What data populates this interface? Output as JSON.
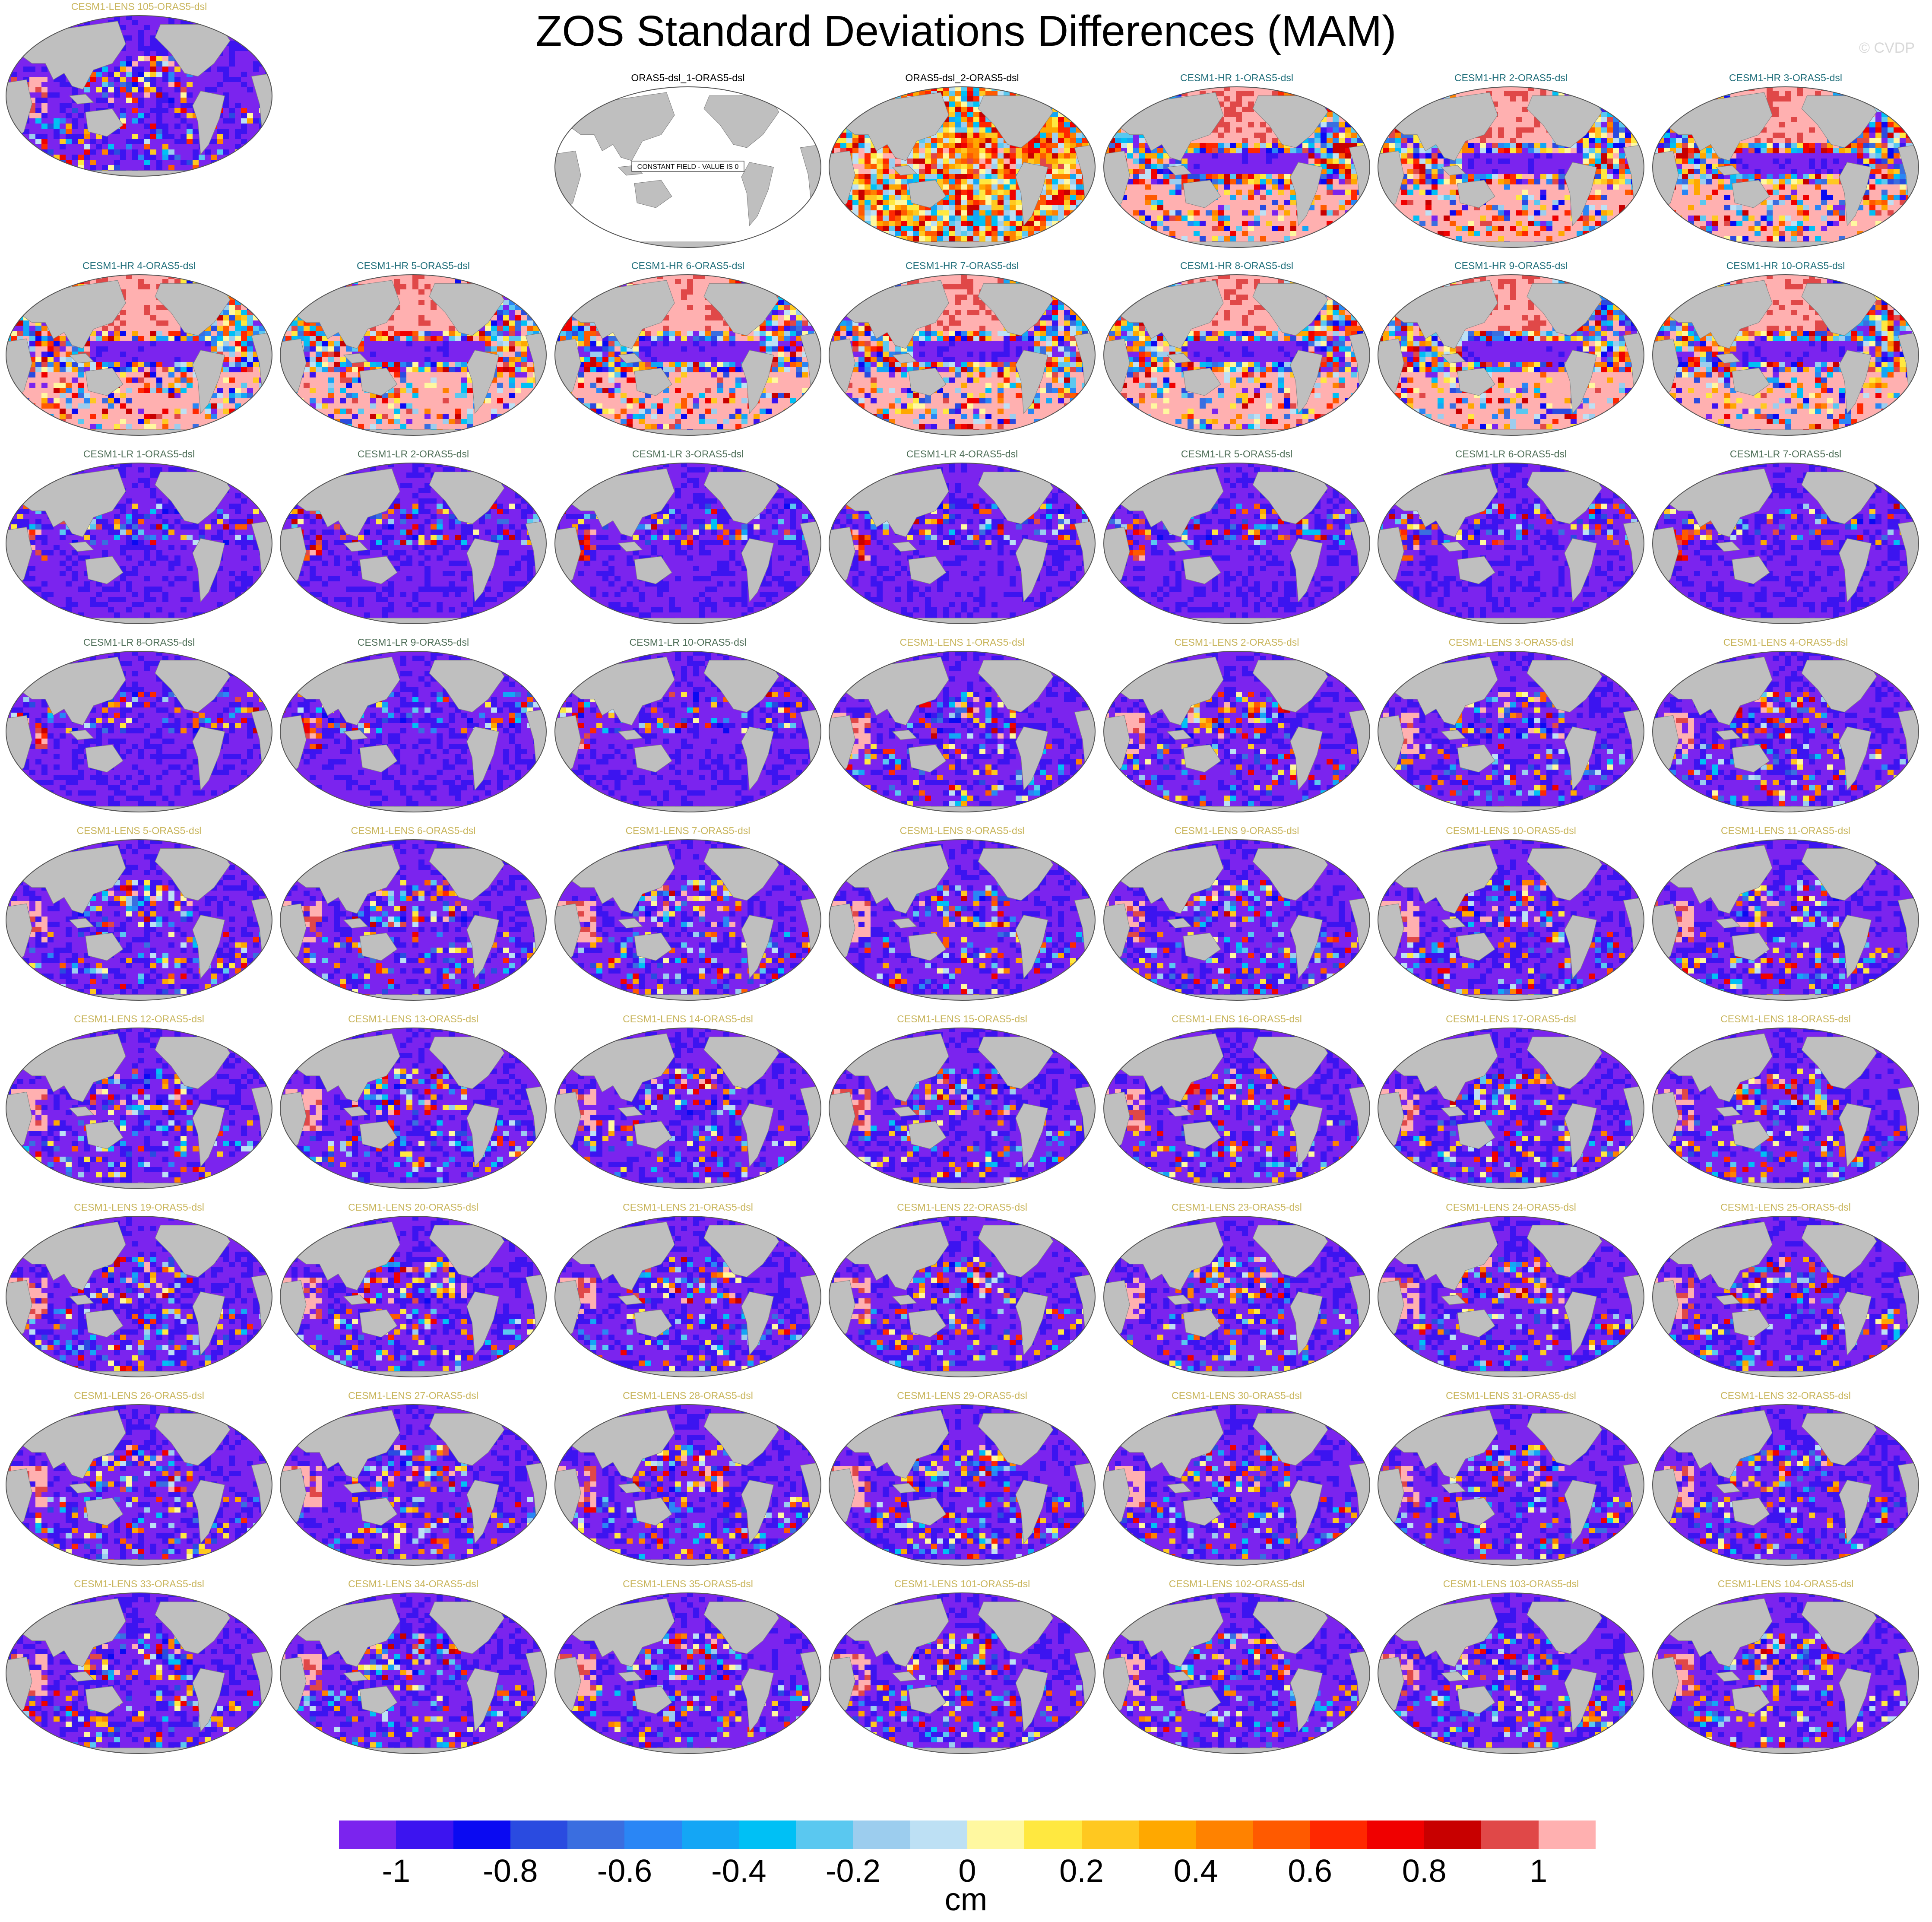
{
  "title": "ZOS Standard Deviations Differences (MAM)",
  "watermark": "© CVDP",
  "constant_field_note": "CONSTANT FIELD - VALUE IS 0",
  "colors": {
    "land": "#bfbfbf",
    "title_obs": "#000000",
    "title_hr": "#1f6e7a",
    "title_lr": "#4e6e57",
    "title_lens": "#c8b45a",
    "land_outline": "#808080"
  },
  "colorbar": {
    "unit": "cm",
    "colors": [
      "#7b24ee",
      "#3c14f0",
      "#0a0af2",
      "#2a4be0",
      "#3a6ee0",
      "#2a86f5",
      "#14a6f5",
      "#00c0f5",
      "#5ac8f0",
      "#9ccdee",
      "#bde0f4",
      "#fff8a0",
      "#ffe840",
      "#ffc820",
      "#ffa800",
      "#ff8200",
      "#ff5a00",
      "#ff2800",
      "#f00000",
      "#c80000",
      "#e04848",
      "#ffb0b0"
    ],
    "ticks": [
      "-1",
      "-0.8",
      "-0.6",
      "-0.4",
      "-0.2",
      "0",
      "0.2",
      "0.4",
      "0.6",
      "0.8",
      "1"
    ],
    "tick_values": [
      -1,
      -0.8,
      -0.6,
      -0.4,
      -0.2,
      0,
      0.2,
      0.4,
      0.6,
      0.8,
      1
    ]
  },
  "panels": [
    {
      "title": "ORAS5-dsl_1-ORAS5-dsl",
      "group": "obs",
      "pattern": "constant"
    },
    {
      "title": "ORAS5-dsl_2-ORAS5-dsl",
      "group": "obs",
      "pattern": "obs"
    },
    {
      "title": "CESM1-HR 1-ORAS5-dsl",
      "group": "hr",
      "pattern": "hr"
    },
    {
      "title": "CESM1-HR 2-ORAS5-dsl",
      "group": "hr",
      "pattern": "hr"
    },
    {
      "title": "CESM1-HR 3-ORAS5-dsl",
      "group": "hr",
      "pattern": "hr"
    },
    {
      "title": "CESM1-HR 4-ORAS5-dsl",
      "group": "hr",
      "pattern": "hr"
    },
    {
      "title": "CESM1-HR 5-ORAS5-dsl",
      "group": "hr",
      "pattern": "hr"
    },
    {
      "title": "CESM1-HR 6-ORAS5-dsl",
      "group": "hr",
      "pattern": "hr"
    },
    {
      "title": "CESM1-HR 7-ORAS5-dsl",
      "group": "hr",
      "pattern": "hr"
    },
    {
      "title": "CESM1-HR 8-ORAS5-dsl",
      "group": "hr",
      "pattern": "hr"
    },
    {
      "title": "CESM1-HR 9-ORAS5-dsl",
      "group": "hr",
      "pattern": "hr"
    },
    {
      "title": "CESM1-HR 10-ORAS5-dsl",
      "group": "hr",
      "pattern": "hr"
    },
    {
      "title": "CESM1-LR 1-ORAS5-dsl",
      "group": "lr",
      "pattern": "lr"
    },
    {
      "title": "CESM1-LR 2-ORAS5-dsl",
      "group": "lr",
      "pattern": "lr"
    },
    {
      "title": "CESM1-LR 3-ORAS5-dsl",
      "group": "lr",
      "pattern": "lr"
    },
    {
      "title": "CESM1-LR 4-ORAS5-dsl",
      "group": "lr",
      "pattern": "lr"
    },
    {
      "title": "CESM1-LR 5-ORAS5-dsl",
      "group": "lr",
      "pattern": "lr"
    },
    {
      "title": "CESM1-LR 6-ORAS5-dsl",
      "group": "lr",
      "pattern": "lr"
    },
    {
      "title": "CESM1-LR 7-ORAS5-dsl",
      "group": "lr",
      "pattern": "lr"
    },
    {
      "title": "CESM1-LR 8-ORAS5-dsl",
      "group": "lr",
      "pattern": "lr"
    },
    {
      "title": "CESM1-LR 9-ORAS5-dsl",
      "group": "lr",
      "pattern": "lr"
    },
    {
      "title": "CESM1-LR 10-ORAS5-dsl",
      "group": "lr",
      "pattern": "lr"
    },
    {
      "title": "CESM1-LENS 1-ORAS5-dsl",
      "group": "lens",
      "pattern": "lens"
    },
    {
      "title": "CESM1-LENS 2-ORAS5-dsl",
      "group": "lens",
      "pattern": "lens"
    },
    {
      "title": "CESM1-LENS 3-ORAS5-dsl",
      "group": "lens",
      "pattern": "lens"
    },
    {
      "title": "CESM1-LENS 4-ORAS5-dsl",
      "group": "lens",
      "pattern": "lens"
    },
    {
      "title": "CESM1-LENS 5-ORAS5-dsl",
      "group": "lens",
      "pattern": "lens"
    },
    {
      "title": "CESM1-LENS 6-ORAS5-dsl",
      "group": "lens",
      "pattern": "lens"
    },
    {
      "title": "CESM1-LENS 7-ORAS5-dsl",
      "group": "lens",
      "pattern": "lens"
    },
    {
      "title": "CESM1-LENS 8-ORAS5-dsl",
      "group": "lens",
      "pattern": "lens"
    },
    {
      "title": "CESM1-LENS 9-ORAS5-dsl",
      "group": "lens",
      "pattern": "lens"
    },
    {
      "title": "CESM1-LENS 10-ORAS5-dsl",
      "group": "lens",
      "pattern": "lens"
    },
    {
      "title": "CESM1-LENS 11-ORAS5-dsl",
      "group": "lens",
      "pattern": "lens"
    },
    {
      "title": "CESM1-LENS 12-ORAS5-dsl",
      "group": "lens",
      "pattern": "lens"
    },
    {
      "title": "CESM1-LENS 13-ORAS5-dsl",
      "group": "lens",
      "pattern": "lens"
    },
    {
      "title": "CESM1-LENS 14-ORAS5-dsl",
      "group": "lens",
      "pattern": "lens"
    },
    {
      "title": "CESM1-LENS 15-ORAS5-dsl",
      "group": "lens",
      "pattern": "lens"
    },
    {
      "title": "CESM1-LENS 16-ORAS5-dsl",
      "group": "lens",
      "pattern": "lens"
    },
    {
      "title": "CESM1-LENS 17-ORAS5-dsl",
      "group": "lens",
      "pattern": "lens"
    },
    {
      "title": "CESM1-LENS 18-ORAS5-dsl",
      "group": "lens",
      "pattern": "lens"
    },
    {
      "title": "CESM1-LENS 19-ORAS5-dsl",
      "group": "lens",
      "pattern": "lens"
    },
    {
      "title": "CESM1-LENS 20-ORAS5-dsl",
      "group": "lens",
      "pattern": "lens"
    },
    {
      "title": "CESM1-LENS 21-ORAS5-dsl",
      "group": "lens",
      "pattern": "lens"
    },
    {
      "title": "CESM1-LENS 22-ORAS5-dsl",
      "group": "lens",
      "pattern": "lens"
    },
    {
      "title": "CESM1-LENS 23-ORAS5-dsl",
      "group": "lens",
      "pattern": "lens"
    },
    {
      "title": "CESM1-LENS 24-ORAS5-dsl",
      "group": "lens",
      "pattern": "lens"
    },
    {
      "title": "CESM1-LENS 25-ORAS5-dsl",
      "group": "lens",
      "pattern": "lens"
    },
    {
      "title": "CESM1-LENS 26-ORAS5-dsl",
      "group": "lens",
      "pattern": "lens"
    },
    {
      "title": "CESM1-LENS 27-ORAS5-dsl",
      "group": "lens",
      "pattern": "lens"
    },
    {
      "title": "CESM1-LENS 28-ORAS5-dsl",
      "group": "lens",
      "pattern": "lens"
    },
    {
      "title": "CESM1-LENS 29-ORAS5-dsl",
      "group": "lens",
      "pattern": "lens"
    },
    {
      "title": "CESM1-LENS 30-ORAS5-dsl",
      "group": "lens",
      "pattern": "lens"
    },
    {
      "title": "CESM1-LENS 31-ORAS5-dsl",
      "group": "lens",
      "pattern": "lens"
    },
    {
      "title": "CESM1-LENS 32-ORAS5-dsl",
      "group": "lens",
      "pattern": "lens"
    },
    {
      "title": "CESM1-LENS 33-ORAS5-dsl",
      "group": "lens",
      "pattern": "lens"
    },
    {
      "title": "CESM1-LENS 34-ORAS5-dsl",
      "group": "lens",
      "pattern": "lens"
    },
    {
      "title": "CESM1-LENS 35-ORAS5-dsl",
      "group": "lens",
      "pattern": "lens"
    },
    {
      "title": "CESM1-LENS 101-ORAS5-dsl",
      "group": "lens",
      "pattern": "lens"
    },
    {
      "title": "CESM1-LENS 102-ORAS5-dsl",
      "group": "lens",
      "pattern": "lens"
    },
    {
      "title": "CESM1-LENS 103-ORAS5-dsl",
      "group": "lens",
      "pattern": "lens"
    },
    {
      "title": "CESM1-LENS 104-ORAS5-dsl",
      "group": "lens",
      "pattern": "lens"
    },
    {
      "title": "CESM1-LENS 105-ORAS5-dsl",
      "group": "lens",
      "pattern": "lens"
    }
  ],
  "chart_data": {
    "type": "heatmap",
    "title": "ZOS Standard Deviations Differences (MAM)",
    "colorbar_label": "cm",
    "colorbar_range": [
      -1,
      1
    ],
    "colorbar_ticks": [
      -1,
      -0.8,
      -0.6,
      -0.4,
      -0.2,
      0,
      0.2,
      0.4,
      0.6,
      0.8,
      1
    ],
    "panel_count": 62,
    "map_projection": "global Robinson, Pacific-centered",
    "series": [
      {
        "name": "ORAS5-dsl_1-ORAS5-dsl",
        "approx_value": 0
      },
      {
        "name": "ORAS5-dsl_2-ORAS5-dsl",
        "approx_pattern": "mixed positive/negative, mostly 0 to 0.4"
      },
      {
        "name": "CESM1-HR 1-10-ORAS5-dsl",
        "approx_pattern": "strongly positive (>1) in subtropics, strongly negative (<-1) along equatorial Pacific"
      },
      {
        "name": "CESM1-LR 1-10-ORAS5-dsl",
        "approx_pattern": "mostly negative (<-1) with positive patches in western boundary currents"
      },
      {
        "name": "CESM1-LENS 1-35,101-105-ORAS5-dsl",
        "approx_pattern": "mostly negative (<-1) with positive bands in Indian Ocean and western Pacific"
      }
    ]
  }
}
